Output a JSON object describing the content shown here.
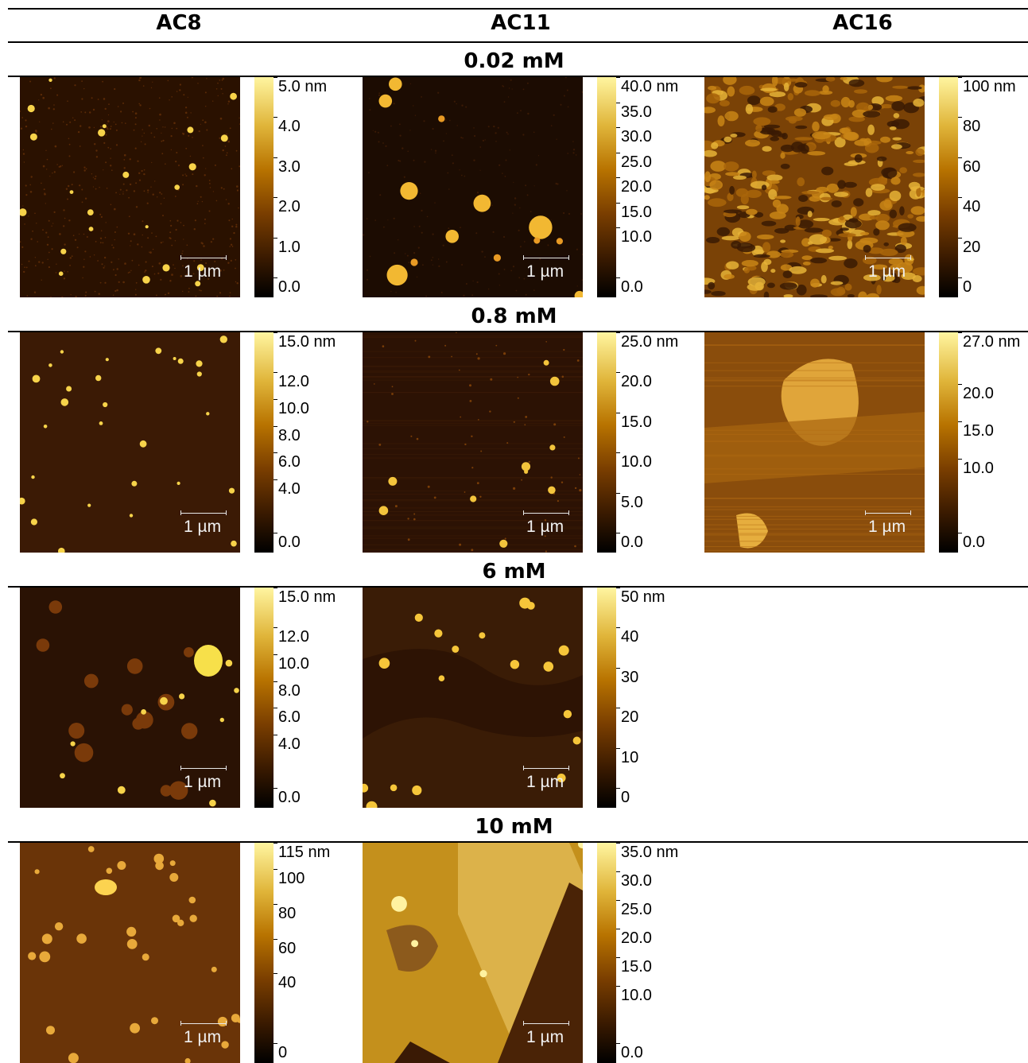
{
  "columns": [
    "AC8",
    "AC11",
    "AC16"
  ],
  "rows": [
    {
      "concentration": "0.02 mM",
      "panels": [
        {
          "sample": "AC8",
          "scale_bar": "1 µm",
          "colorbar_ticks": [
            "5.0 nm",
            "4.0",
            "3.0",
            "2.0",
            "1.0",
            "0.0"
          ],
          "colorbar_values": [
            5.0,
            4.0,
            3.0,
            2.0,
            1.0,
            0.0
          ],
          "colorbar_max": 5.0,
          "texture": "fine-dots"
        },
        {
          "sample": "AC11",
          "scale_bar": "1 µm",
          "colorbar_ticks": [
            "40.0 nm",
            "35.0",
            "30.0",
            "25.0",
            "20.0",
            "15.0",
            "10.0",
            "0.0"
          ],
          "colorbar_values": [
            40,
            35,
            30,
            25,
            20,
            15,
            10,
            0
          ],
          "colorbar_max": 40,
          "texture": "dark-blobs"
        },
        {
          "sample": "AC16",
          "scale_bar": "1 µm",
          "colorbar_ticks": [
            "100 nm",
            "80",
            "60",
            "40",
            "20",
            "0"
          ],
          "colorbar_values": [
            100,
            80,
            60,
            40,
            20,
            0
          ],
          "colorbar_max": 100,
          "texture": "grainy"
        }
      ]
    },
    {
      "concentration": "0.8 mM",
      "panels": [
        {
          "sample": "AC8",
          "scale_bar": "1 µm",
          "colorbar_ticks": [
            "15.0 nm",
            "12.0",
            "10.0",
            "8.0",
            "6.0",
            "4.0",
            "0.0"
          ],
          "colorbar_values": [
            15,
            12,
            10,
            8,
            6,
            4,
            0
          ],
          "colorbar_max": 15,
          "texture": "sparse-dots"
        },
        {
          "sample": "AC11",
          "scale_bar": "1 µm",
          "colorbar_ticks": [
            "25.0 nm",
            "20.0",
            "15.0",
            "10.0",
            "5.0",
            "0.0"
          ],
          "colorbar_values": [
            25,
            20,
            15,
            10,
            5,
            0
          ],
          "colorbar_max": 25,
          "texture": "streaky-dots"
        },
        {
          "sample": "AC16",
          "scale_bar": "1 µm",
          "colorbar_ticks": [
            "27.0 nm",
            "20.0",
            "15.0",
            "10.0",
            "0.0"
          ],
          "colorbar_values": [
            27,
            20,
            15,
            10,
            0
          ],
          "colorbar_max": 27,
          "texture": "terraces"
        }
      ]
    },
    {
      "concentration": "6 mM",
      "panels": [
        {
          "sample": "AC8",
          "scale_bar": "1 µm",
          "colorbar_ticks": [
            "15.0 nm",
            "12.0",
            "10.0",
            "8.0",
            "6.0",
            "4.0",
            "0.0"
          ],
          "colorbar_values": [
            15,
            12,
            10,
            8,
            6,
            4,
            0
          ],
          "colorbar_max": 15,
          "texture": "islands"
        },
        {
          "sample": "AC11",
          "scale_bar": "1 µm",
          "colorbar_ticks": [
            "50 nm",
            "40",
            "30",
            "20",
            "10",
            "0"
          ],
          "colorbar_values": [
            50,
            40,
            30,
            20,
            10,
            0
          ],
          "colorbar_max": 50,
          "texture": "domains-dots"
        }
      ]
    },
    {
      "concentration": "10 mM",
      "panels": [
        {
          "sample": "AC8",
          "scale_bar": "1 µm",
          "colorbar_ticks": [
            "115 nm",
            "100",
            "80",
            "60",
            "40",
            "0"
          ],
          "colorbar_values": [
            115,
            100,
            80,
            60,
            40,
            0
          ],
          "colorbar_max": 115,
          "texture": "warm-dots"
        },
        {
          "sample": "AC11",
          "scale_bar": "1 µm",
          "colorbar_ticks": [
            "35.0 nm",
            "30.0",
            "25.0",
            "20.0",
            "15.0",
            "10.0",
            "0.0"
          ],
          "colorbar_values": [
            35,
            30,
            25,
            20,
            15,
            10,
            0
          ],
          "colorbar_max": 35,
          "texture": "bright-stripes"
        }
      ]
    }
  ]
}
